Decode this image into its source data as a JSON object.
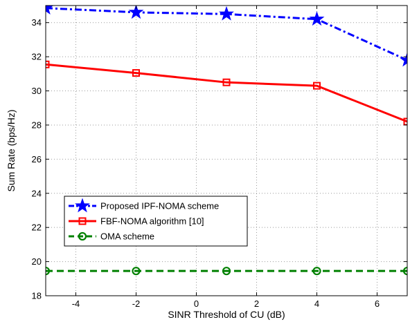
{
  "chart_data": {
    "type": "line",
    "xlabel": "SINR Threshold of CU (dB)",
    "ylabel": "Sum Rate (bps/Hz)",
    "xlim": [
      -5,
      7
    ],
    "ylim": [
      18,
      35
    ],
    "xticks": [
      -4,
      -2,
      0,
      2,
      4,
      6
    ],
    "yticks": [
      18,
      20,
      22,
      24,
      26,
      28,
      30,
      32,
      34
    ],
    "grid": true,
    "legend_position": "bottom-left",
    "series": [
      {
        "name": "Proposed IPF-NOMA scheme",
        "color": "#0000ff",
        "line_style": "dash-dot",
        "marker": "star",
        "x": [
          -5,
          -2,
          1,
          4,
          7
        ],
        "y": [
          34.85,
          34.6,
          34.5,
          34.2,
          31.8
        ]
      },
      {
        "name": "FBF-NOMA algorithm [10]",
        "color": "#ff0000",
        "line_style": "solid",
        "marker": "square",
        "x": [
          -5,
          -2,
          1,
          4,
          7
        ],
        "y": [
          31.55,
          31.05,
          30.5,
          30.3,
          28.2
        ]
      },
      {
        "name": "OMA scheme",
        "color": "#008000",
        "line_style": "dashed",
        "marker": "circle",
        "x": [
          -5,
          -2,
          1,
          4,
          7
        ],
        "y": [
          19.45,
          19.45,
          19.45,
          19.45,
          19.45
        ]
      }
    ]
  }
}
